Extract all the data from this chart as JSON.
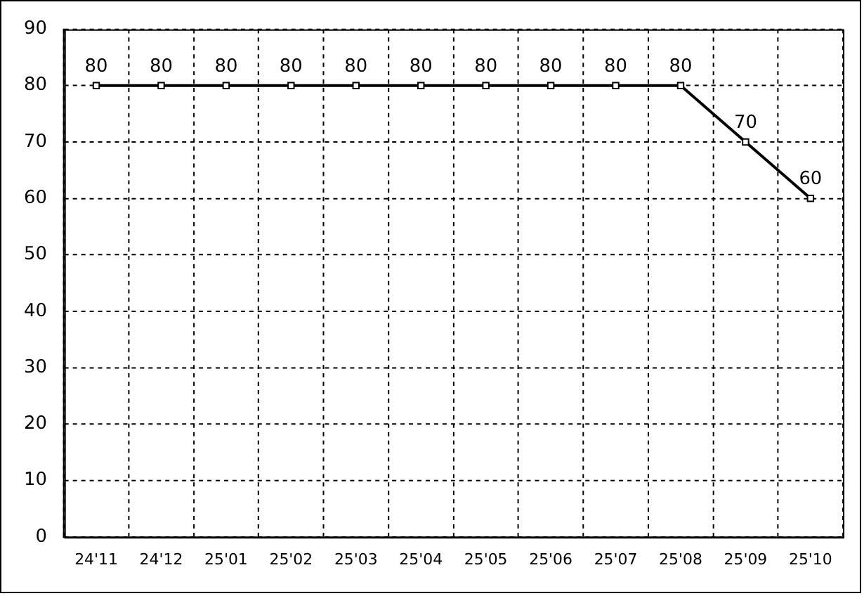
{
  "chart_data": {
    "type": "line",
    "categories": [
      "24'11",
      "24'12",
      "25'01",
      "25'02",
      "25'03",
      "25'04",
      "25'05",
      "25'06",
      "25'07",
      "25'08",
      "25'09",
      "25'10"
    ],
    "series": [
      {
        "color": "#000000",
        "values": [
          80,
          80,
          80,
          80,
          80,
          80,
          80,
          80,
          80,
          80,
          70,
          60
        ]
      }
    ],
    "ylim": [
      0,
      90
    ],
    "yticks": [
      0,
      10,
      20,
      30,
      40,
      50,
      60,
      70,
      80,
      90
    ],
    "grid": true,
    "data_labels": true,
    "marker": "square",
    "line_style": "solid"
  }
}
